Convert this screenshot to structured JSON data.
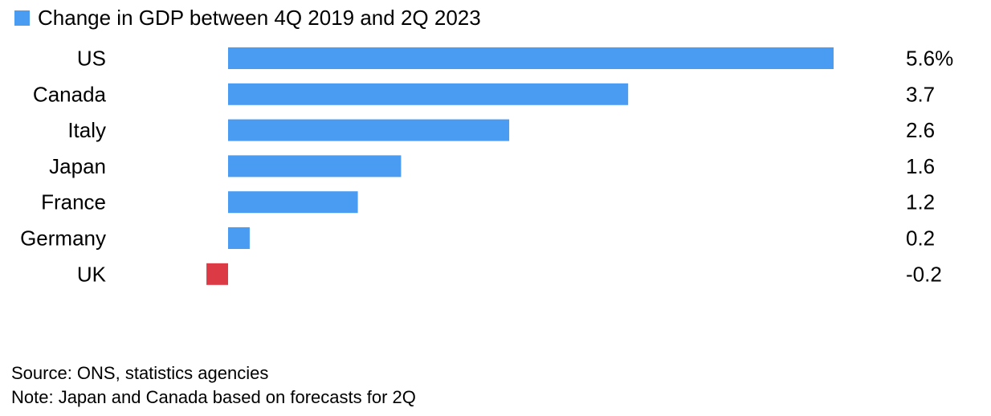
{
  "chart_data": {
    "type": "bar",
    "orientation": "horizontal",
    "legend": [
      "Change in GDP between 4Q 2019 and 2Q 2023"
    ],
    "categories": [
      "US",
      "Canada",
      "Italy",
      "Japan",
      "France",
      "Germany",
      "UK"
    ],
    "values": [
      5.6,
      3.7,
      2.6,
      1.6,
      1.2,
      0.2,
      -0.2
    ],
    "value_labels": [
      "5.6%",
      "3.7",
      "2.6",
      "1.6",
      "1.2",
      "0.2",
      "-0.2"
    ],
    "title": "",
    "xlabel": "",
    "ylabel": "",
    "xlim": [
      -0.25,
      5.6
    ],
    "grid": false,
    "legend_position": "top-left",
    "colors": {
      "positive": "#4a9cf3",
      "negative": "#dc3a45"
    }
  },
  "footer": {
    "source": "Source: ONS, statistics agencies",
    "note": "Note: Japan and Canada based on forecasts for 2Q"
  }
}
